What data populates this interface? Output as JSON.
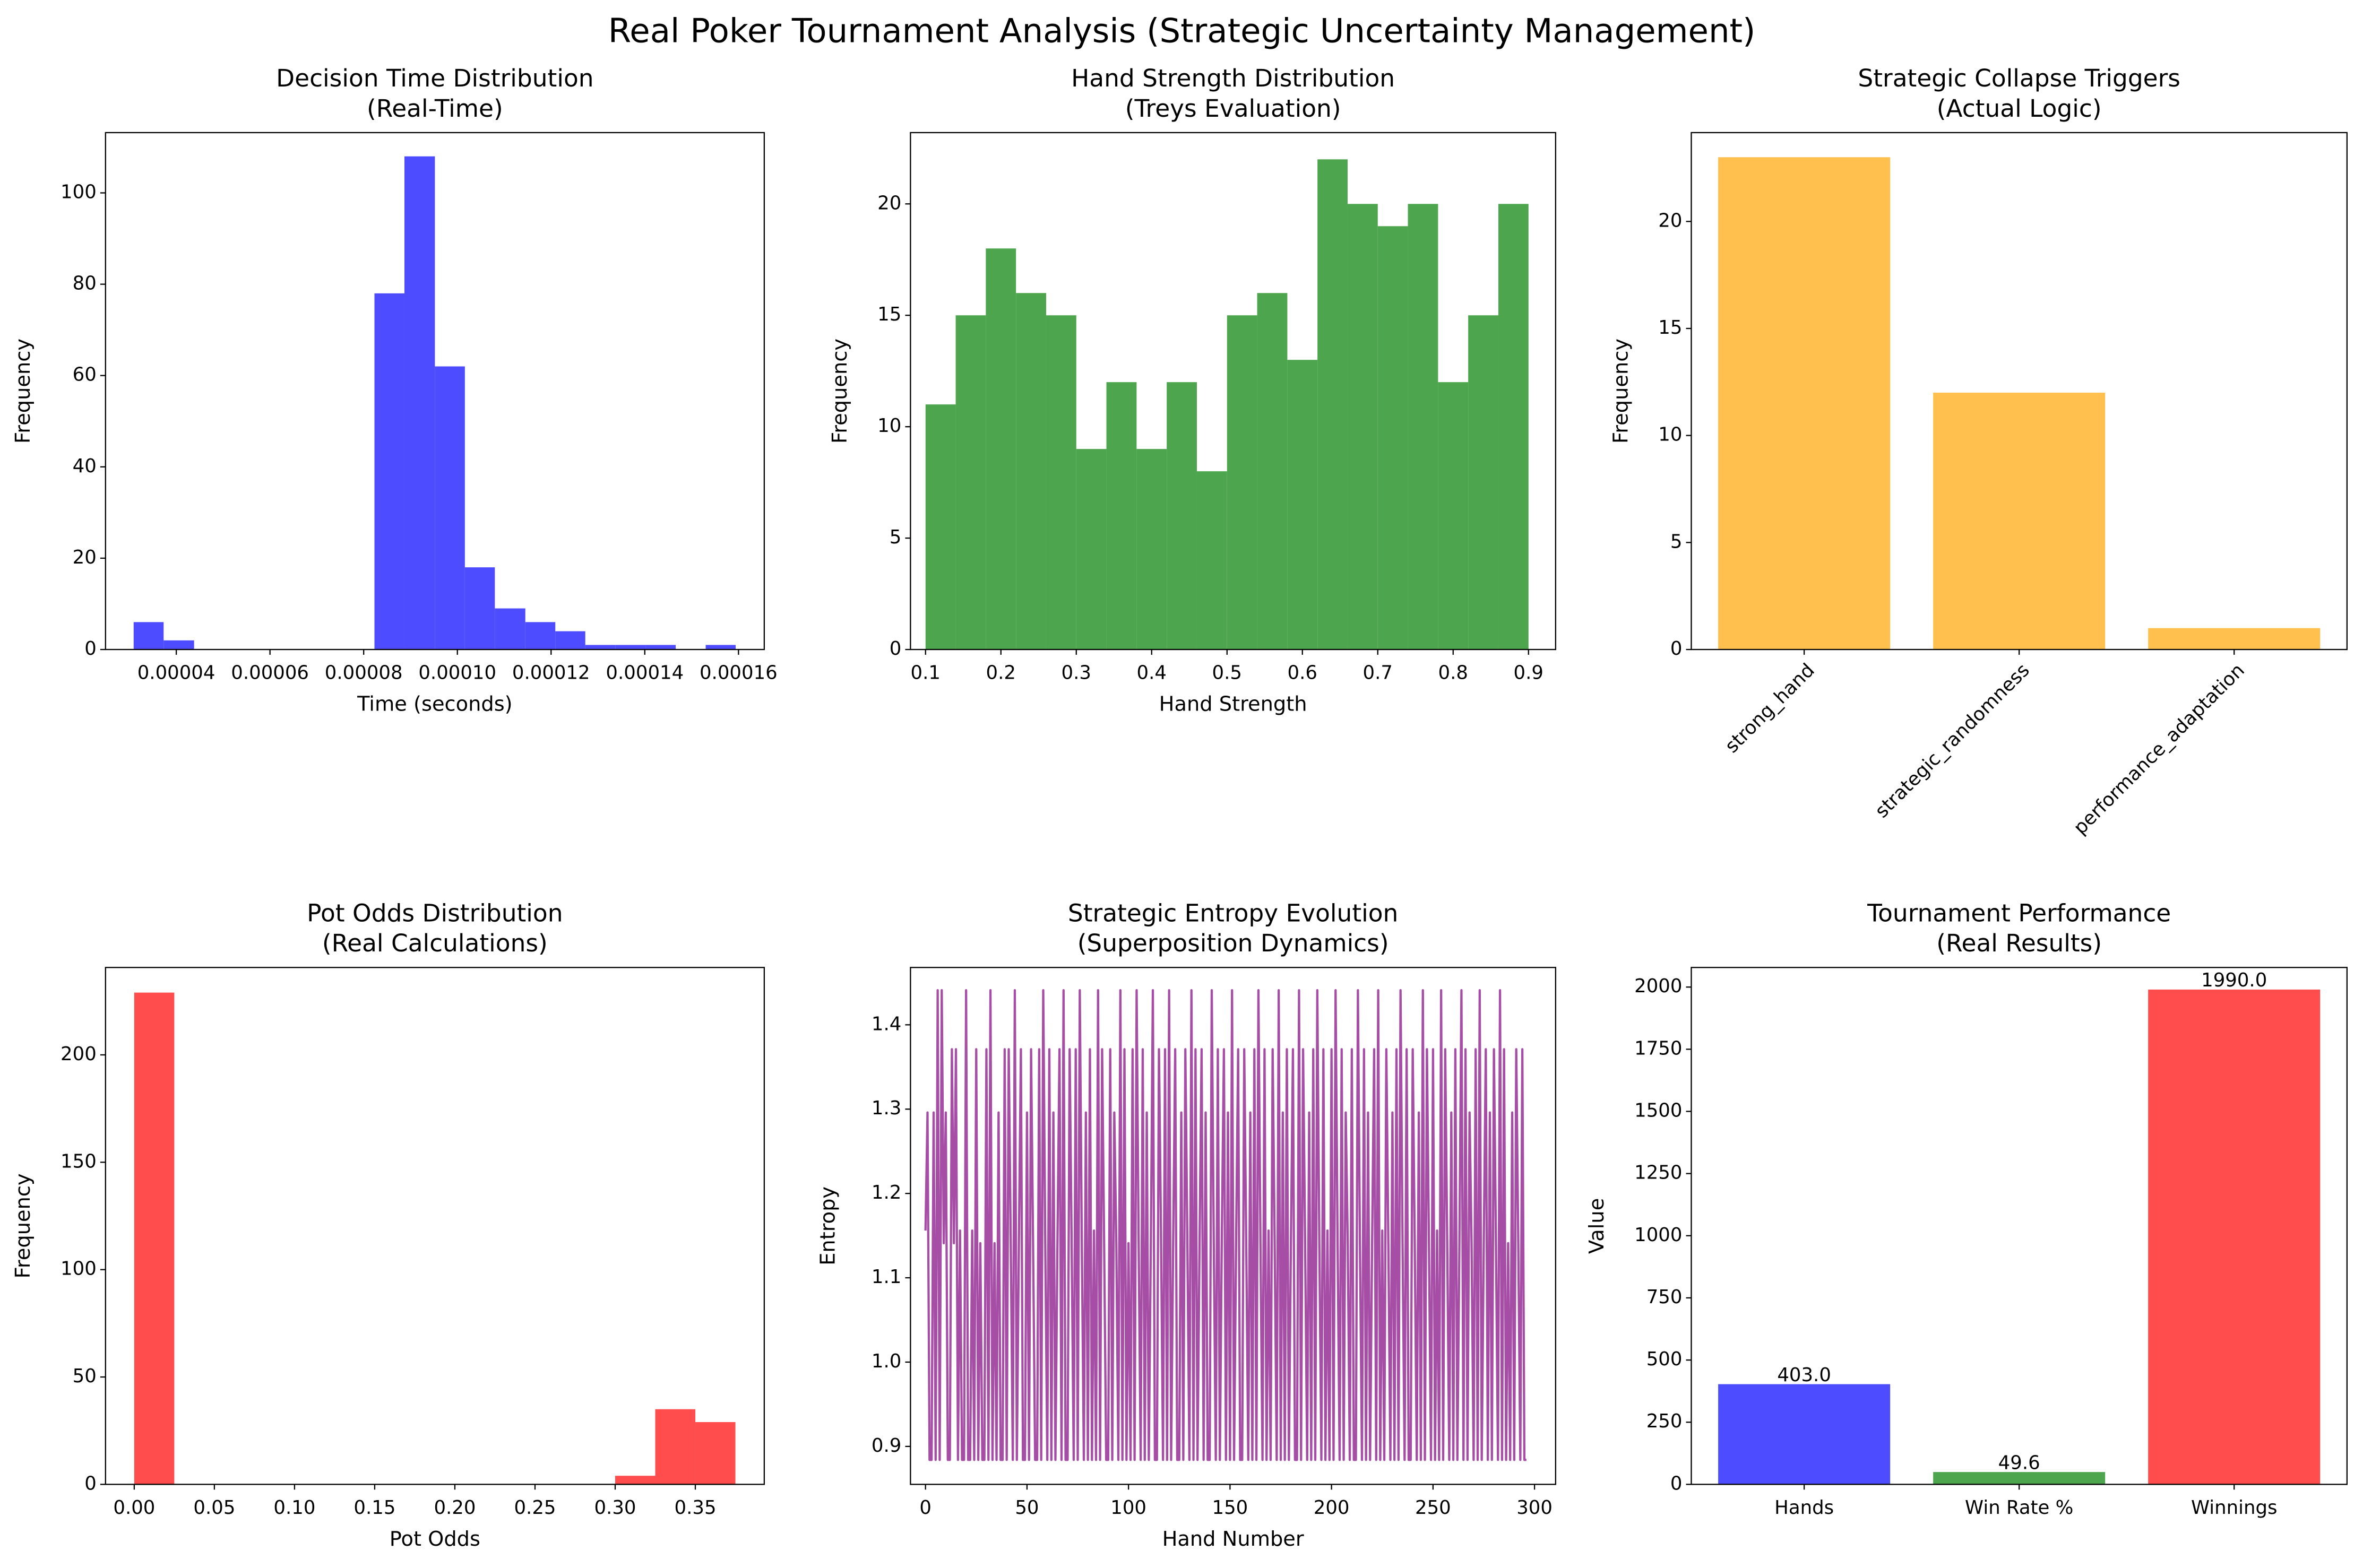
{
  "title": "Real Poker Tournament Analysis (Strategic Uncertainty Management)",
  "chart_data": [
    {
      "type": "histogram",
      "title": "Decision Time Distribution",
      "subtitle": "(Real-Time)",
      "xlabel": "Time (seconds)",
      "ylabel": "Frequency",
      "color": "#4d4dff",
      "bins": [
        3.09e-05,
        3.73e-05,
        4.38e-05,
        5.02e-05,
        5.66e-05,
        6.3e-05,
        6.95e-05,
        7.59e-05,
        8.23e-05,
        8.87e-05,
        9.52e-05,
        0.0001016,
        0.000108,
        0.0001145,
        0.0001209,
        0.0001273,
        0.0001337,
        0.0001402,
        0.0001466,
        0.000153,
        0.0001594
      ],
      "values": [
        6,
        2,
        0,
        0,
        0,
        0,
        0,
        0,
        78,
        108,
        62,
        18,
        9,
        6,
        4,
        1,
        1,
        1,
        0,
        1
      ],
      "xlim": [
        2.49e-05,
        0.0001655
      ],
      "xticks": [
        4e-05,
        6e-05,
        8e-05,
        {
          "value": 0.0001,
          "label": "0.00010"
        },
        0.00012,
        0.00014,
        0.00016
      ],
      "ylim": [
        0,
        113.2
      ],
      "yticks": [
        0,
        20,
        40,
        60,
        80,
        100
      ]
    },
    {
      "type": "histogram",
      "title": "Hand Strength Distribution",
      "subtitle": "(Treys Evaluation)",
      "xlabel": "Hand Strength",
      "ylabel": "Frequency",
      "color": "#4da64d",
      "bins": [
        0.1,
        0.14,
        0.18,
        0.22,
        0.26,
        0.3,
        0.34,
        0.38,
        0.42,
        0.46,
        0.5,
        0.54,
        0.58,
        0.62,
        0.66,
        0.7,
        0.74,
        0.78,
        0.82,
        0.86,
        0.9
      ],
      "values": [
        11,
        15,
        18,
        16,
        15,
        9,
        12,
        9,
        12,
        8,
        15,
        16,
        13,
        22,
        20,
        19,
        20,
        12,
        15,
        20
      ],
      "xlim": [
        0.08,
        0.936
      ],
      "xticks": [
        0.1,
        0.2,
        0.3,
        0.4,
        0.5,
        0.6,
        0.7,
        0.8,
        0.9
      ],
      "ylim": [
        0,
        23.2
      ],
      "yticks": [
        0,
        5,
        10,
        15,
        20
      ]
    },
    {
      "type": "bar",
      "title": "Strategic Collapse Triggers",
      "subtitle": "(Actual Logic)",
      "ylabel": "Frequency",
      "color": "#ffc04d",
      "rotate_labels": 45,
      "categories": [
        "strong_hand",
        "strategic_randomness",
        "performance_adaptation"
      ],
      "values": [
        23,
        12,
        1
      ],
      "ylim": [
        0,
        24.15
      ],
      "yticks": [
        0,
        5,
        10,
        15,
        20
      ]
    },
    {
      "type": "histogram",
      "title": "Pot Odds Distribution",
      "subtitle": "(Real Calculations)",
      "xlabel": "Pot Odds",
      "ylabel": "Frequency",
      "color": "#ff4d4d",
      "bins": [
        0,
        0.025,
        0.05,
        0.075,
        0.1,
        0.125,
        0.15,
        0.175,
        0.2,
        0.225,
        0.25,
        0.275,
        0.3,
        0.325,
        0.35,
        0.375
      ],
      "values": [
        229,
        0,
        0,
        0,
        0,
        0,
        0,
        0,
        0,
        0,
        0,
        0,
        4,
        35,
        29
      ],
      "xlim": [
        -0.0179,
        0.393
      ],
      "xticks": [
        {
          "value": 0,
          "label": "0.00"
        },
        0.05,
        {
          "value": 0.1,
          "label": "0.10"
        },
        0.15,
        {
          "value": 0.2,
          "label": "0.20"
        },
        0.25,
        {
          "value": 0.3,
          "label": "0.30"
        },
        0.35
      ],
      "ylim": [
        0,
        240.7
      ],
      "yticks": [
        0,
        50,
        100,
        150,
        200
      ]
    },
    {
      "type": "line",
      "title": "Strategic Entropy Evolution",
      "subtitle": "(Superposition Dynamics)",
      "xlabel": "Hand Number",
      "ylabel": "Entropy",
      "color": "#a64da6",
      "x": [
        0,
        1,
        2,
        3,
        4,
        5,
        6,
        7,
        8,
        9,
        10,
        11,
        12,
        13,
        14,
        15,
        16,
        17,
        18,
        19,
        20,
        21,
        22,
        23,
        24,
        25,
        26,
        27,
        28,
        29,
        30,
        31,
        32,
        33,
        34,
        35,
        36,
        37,
        38,
        39,
        40,
        41,
        42,
        43,
        44,
        45,
        46,
        47,
        48,
        49,
        50,
        51,
        52,
        53,
        54,
        55,
        56,
        57,
        58,
        59,
        60,
        61,
        62,
        63,
        64,
        65,
        66,
        67,
        68,
        69,
        70,
        71,
        72,
        73,
        74,
        75,
        76,
        77,
        78,
        79,
        80,
        81,
        82,
        83,
        84,
        85,
        86,
        87,
        88,
        89,
        90,
        91,
        92,
        93,
        94,
        95,
        96,
        97,
        98,
        99,
        100,
        101,
        102,
        103,
        104,
        105,
        106,
        107,
        108,
        109,
        110,
        111,
        112,
        113,
        114,
        115,
        116,
        117,
        118,
        119,
        120,
        121,
        122,
        123,
        124,
        125,
        126,
        127,
        128,
        129,
        130,
        131,
        132,
        133,
        134,
        135,
        136,
        137,
        138,
        139,
        140,
        141,
        142,
        143,
        144,
        145,
        146,
        147,
        148,
        149,
        150,
        151,
        152,
        153,
        154,
        155,
        156,
        157,
        158,
        159,
        160,
        161,
        162,
        163,
        164,
        165,
        166,
        167,
        168,
        169,
        170,
        171,
        172,
        173,
        174,
        175,
        176,
        177,
        178,
        179,
        180,
        181,
        182,
        183,
        184,
        185,
        186,
        187,
        188,
        189,
        190,
        191,
        192,
        193,
        194,
        195,
        196,
        197,
        198,
        199,
        200,
        201,
        202,
        203,
        204,
        205,
        206,
        207,
        208,
        209,
        210,
        211,
        212,
        213,
        214,
        215,
        216,
        217,
        218,
        219,
        220,
        221,
        222,
        223,
        224,
        225,
        226,
        227,
        228,
        229,
        230,
        231,
        232,
        233,
        234,
        235,
        236,
        237,
        238,
        239,
        240,
        241,
        242,
        243,
        244,
        245,
        246,
        247,
        248,
        249,
        250,
        251,
        252,
        253,
        254,
        255,
        256,
        257,
        258,
        259,
        260,
        261,
        262,
        263,
        264,
        265,
        266,
        267,
        268,
        269,
        270,
        271,
        272,
        273,
        274,
        275,
        276,
        277,
        278,
        279,
        280,
        281,
        282,
        283,
        284,
        285,
        286,
        287,
        288,
        289,
        290,
        291,
        292,
        293,
        294,
        295,
        296
      ],
      "values": [
        1.156,
        1.296,
        0.884,
        0.884,
        1.296,
        0.884,
        1.441,
        0.884,
        1.441,
        1.141,
        1.296,
        0.884,
        0.884,
        1.371,
        1.141,
        1.371,
        0.884,
        1.156,
        0.884,
        0.884,
        1.441,
        0.884,
        0.884,
        1.156,
        0.884,
        1.371,
        0.884,
        1.141,
        0.884,
        0.884,
        1.371,
        0.884,
        1.441,
        0.884,
        1.141,
        0.884,
        1.296,
        0.884,
        0.884,
        1.371,
        0.884,
        1.371,
        1.141,
        0.884,
        1.441,
        0.884,
        1.141,
        1.371,
        0.884,
        0.884,
        1.296,
        0.884,
        1.371,
        1.141,
        0.884,
        0.884,
        1.371,
        0.884,
        1.441,
        1.141,
        0.884,
        1.371,
        0.884,
        1.296,
        0.884,
        1.141,
        1.371,
        0.884,
        1.441,
        0.884,
        0.884,
        1.371,
        1.141,
        0.884,
        1.371,
        0.884,
        1.441,
        1.141,
        0.884,
        1.296,
        0.884,
        1.371,
        0.884,
        1.156,
        0.884,
        1.441,
        0.884,
        1.371,
        1.141,
        0.884,
        0.884,
        1.371,
        0.884,
        1.296,
        1.141,
        0.884,
        1.441,
        0.884,
        1.371,
        0.884,
        1.141,
        0.884,
        1.371,
        0.884,
        1.441,
        1.141,
        0.884,
        1.371,
        0.884,
        1.296,
        0.884,
        1.141,
        1.441,
        0.884,
        0.884,
        1.371,
        1.156,
        0.884,
        1.371,
        0.884,
        1.441,
        0.884,
        1.141,
        1.371,
        0.884,
        0.884,
        1.296,
        0.884,
        1.371,
        1.141,
        0.884,
        1.441,
        0.884,
        1.371,
        0.884,
        1.141,
        1.371,
        0.884,
        1.296,
        0.884,
        0.884,
        1.441,
        1.141,
        0.884,
        1.371,
        0.884,
        1.156,
        1.371,
        0.884,
        1.296,
        0.884,
        1.441,
        0.884,
        1.141,
        1.371,
        0.884,
        0.884,
        1.371,
        1.141,
        0.884,
        1.296,
        0.884,
        1.371,
        0.884,
        1.441,
        1.141,
        0.884,
        1.371,
        0.884,
        1.156,
        0.884,
        1.371,
        1.141,
        0.884,
        1.441,
        0.884,
        1.296,
        0.884,
        1.371,
        0.884,
        1.141,
        1.371,
        0.884,
        0.884,
        1.441,
        0.884,
        1.371,
        1.141,
        0.884,
        1.296,
        0.884,
        1.371,
        0.884,
        1.441,
        1.141,
        0.884,
        1.371,
        0.884,
        1.156,
        0.884,
        1.371,
        0.884,
        1.441,
        1.141,
        0.884,
        1.371,
        0.884,
        1.296,
        1.141,
        0.884,
        1.371,
        0.884,
        0.884,
        1.441,
        1.141,
        0.884,
        1.371,
        0.884,
        1.296,
        0.884,
        1.141,
        1.371,
        0.884,
        1.441,
        0.884,
        1.156,
        0.884,
        1.371,
        1.141,
        0.884,
        1.296,
        0.884,
        1.371,
        0.884,
        1.441,
        1.141,
        0.884,
        1.371,
        0.884,
        0.884,
        1.371,
        1.141,
        0.884,
        1.296,
        0.884,
        1.441,
        0.884,
        1.371,
        1.141,
        0.884,
        1.371,
        0.884,
        1.156,
        0.884,
        1.441,
        0.884,
        1.371,
        1.141,
        0.884,
        1.296,
        0.884,
        1.371,
        0.884,
        1.141,
        1.441,
        0.884,
        1.371,
        0.884,
        1.296,
        1.141,
        0.884,
        1.371,
        0.884,
        1.441,
        0.884,
        1.141,
        1.371,
        0.884,
        1.296,
        0.884,
        1.371,
        1.141,
        0.884,
        1.441,
        0.884,
        1.371,
        0.884,
        1.141,
        0.884,
        1.296,
        0.884,
        1.371,
        1.141,
        0.884,
        1.371,
        0.884,
        0.884
      ],
      "xlim": [
        -7.4,
        310.4
      ],
      "xticks": [
        0,
        50,
        100,
        150,
        200,
        250,
        300
      ],
      "ylim": [
        0.855,
        1.468
      ],
      "yticks": [
        {
          "value": 0.9,
          "label": "0.9"
        },
        {
          "value": 1,
          "label": "1.0"
        },
        1.1,
        1.2,
        1.3,
        1.4
      ]
    },
    {
      "type": "bar",
      "title": "Tournament Performance",
      "subtitle": "(Real Results)",
      "ylabel": "Value",
      "colors": [
        "#4d4dff",
        "#4da64d",
        "#ff4d4d"
      ],
      "categories": [
        "Hands",
        "Win Rate %",
        "Winnings"
      ],
      "values": [
        403,
        49.6,
        1990
      ],
      "value_labels": [
        "403.0",
        "49.6",
        "1990.0"
      ],
      "ylim": [
        0,
        2078.8
      ],
      "yticks": [
        0,
        250,
        500,
        750,
        1000,
        1250,
        1500,
        1750,
        2000
      ]
    }
  ]
}
